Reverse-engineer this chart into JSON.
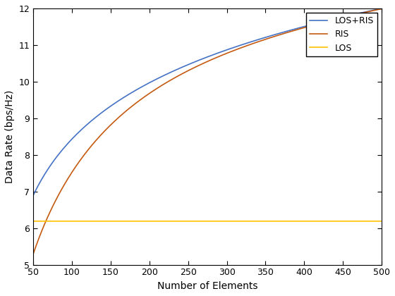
{
  "xlabel": "Number of Elements",
  "ylabel": "Data Rate (bps/Hz)",
  "xlim": [
    50,
    500
  ],
  "ylim": [
    5,
    12
  ],
  "xticks": [
    50,
    100,
    150,
    200,
    250,
    300,
    350,
    400,
    450,
    500
  ],
  "yticks": [
    5,
    6,
    7,
    8,
    9,
    10,
    11,
    12
  ],
  "los_ris_color": "#4472C4",
  "ris_color": "#C55A11",
  "los_color": "#FFC000",
  "los_value": 6.19,
  "legend_labels": [
    "LOS+RIS",
    "RIS",
    "LOS"
  ],
  "background_color": "#ffffff",
  "linewidth": 1.2
}
